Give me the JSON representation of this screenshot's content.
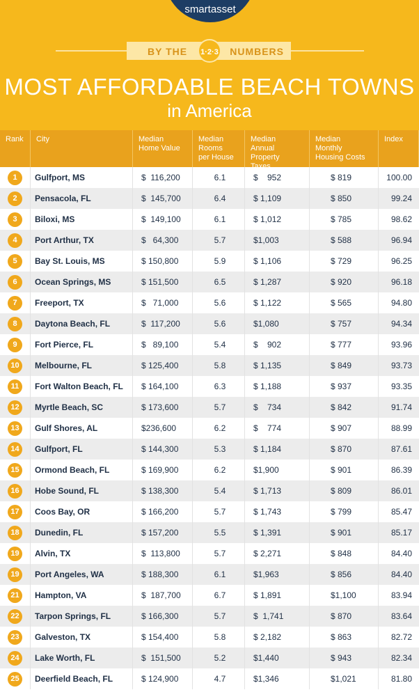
{
  "header": {
    "logo": "smartasset",
    "banner_left": "BY THE",
    "badge": "1·2·3",
    "banner_right": "NUMBERS",
    "title": "MOST AFFORDABLE BEACH TOWNS",
    "subtitle": "in America"
  },
  "table": {
    "columns": [
      "Rank",
      "City",
      "Median Home Value",
      "Median Rooms per House",
      "Median Annual Property Taxes",
      "Median Monthly Housing Costs",
      "Index"
    ],
    "rows": [
      [
        "1",
        "Gulfport, MS",
        "$  116,200",
        "6.1",
        "$    952",
        "$ 819",
        "100.00"
      ],
      [
        "2",
        "Pensacola, FL",
        "$  145,700",
        "6.4",
        "$ 1,109",
        "$ 850",
        "99.24"
      ],
      [
        "3",
        "Biloxi, MS",
        "$  149,100",
        "6.1",
        "$ 1,012",
        "$ 785",
        "98.62"
      ],
      [
        "4",
        "Port Arthur, TX",
        "$   64,300",
        "5.7",
        "$1,003",
        "$ 588",
        "96.94"
      ],
      [
        "5",
        "Bay St. Louis, MS",
        "$ 150,800",
        "5.9",
        "$ 1,106",
        "$ 729",
        "96.25"
      ],
      [
        "6",
        "Ocean Springs, MS",
        "$ 151,500",
        "6.5",
        "$ 1,287",
        "$ 920",
        "96.18"
      ],
      [
        "7",
        "Freeport, TX",
        "$   71,000",
        "5.6",
        "$ 1,122",
        "$ 565",
        "94.80"
      ],
      [
        "8",
        "Daytona Beach, FL",
        "$  117,200",
        "5.6",
        "$1,080",
        "$ 757",
        "94.34"
      ],
      [
        "9",
        "Fort Pierce, FL",
        "$   89,100",
        "5.4",
        "$    902",
        "$ 777",
        "93.96"
      ],
      [
        "10",
        "Melbourne, FL",
        "$ 125,400",
        "5.8",
        "$ 1,135",
        "$ 849",
        "93.73"
      ],
      [
        "11",
        "Fort Walton Beach, FL",
        "$ 164,100",
        "6.3",
        "$ 1,188",
        "$ 937",
        "93.35"
      ],
      [
        "12",
        "Myrtle Beach, SC",
        "$ 173,600",
        "5.7",
        "$    734",
        "$ 842",
        "91.74"
      ],
      [
        "13",
        "Gulf Shores, AL",
        "$236,600",
        "6.2",
        "$    774",
        "$ 907",
        "88.99"
      ],
      [
        "14",
        "Gulfport, FL",
        "$ 144,300",
        "5.3",
        "$ 1,184",
        "$ 870",
        "87.61"
      ],
      [
        "15",
        "Ormond Beach, FL",
        "$ 169,900",
        "6.2",
        "$1,900",
        "$ 901",
        "86.39"
      ],
      [
        "16",
        "Hobe Sound, FL",
        "$ 138,300",
        "5.4",
        "$ 1,713",
        "$ 809",
        "86.01"
      ],
      [
        "17",
        "Coos Bay, OR",
        "$ 166,200",
        "5.7",
        "$ 1,743",
        "$ 799",
        "85.47"
      ],
      [
        "18",
        "Dunedin, FL",
        "$ 157,200",
        "5.5",
        "$ 1,391",
        "$ 901",
        "85.17"
      ],
      [
        "19",
        "Alvin, TX",
        "$  113,800",
        "5.7",
        "$ 2,271",
        "$ 848",
        "84.40"
      ],
      [
        "19",
        "Port Angeles, WA",
        "$ 188,300",
        "6.1",
        "$1,963",
        "$ 856",
        "84.40"
      ],
      [
        "21",
        "Hampton, VA",
        "$  187,700",
        "6.7",
        "$ 1,891",
        "$1,100",
        "83.94"
      ],
      [
        "22",
        "Tarpon Springs, FL",
        "$ 166,300",
        "5.7",
        "$  1,741",
        "$ 870",
        "83.64"
      ],
      [
        "23",
        "Galveston, TX",
        "$ 154,400",
        "5.8",
        "$ 2,182",
        "$ 863",
        "82.72"
      ],
      [
        "24",
        "Lake Worth, FL",
        "$  151,500",
        "5.2",
        "$1,440",
        "$ 943",
        "82.34"
      ],
      [
        "25",
        "Deerfield Beach, FL",
        "$ 124,900",
        "4.7",
        "$1,346",
        "$1,021",
        "81.80"
      ]
    ]
  }
}
